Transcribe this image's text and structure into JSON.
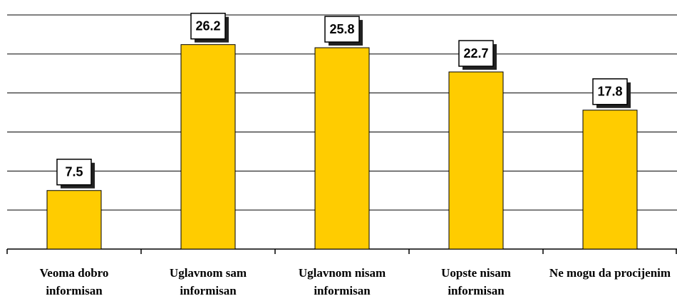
{
  "chart_data": {
    "type": "bar",
    "categories": [
      "Veoma dobro informisan",
      "Uglavnom sam informisan",
      "Uglavnom nisam informisan",
      "Uopste nisam informisan",
      "Ne mogu da procijenim"
    ],
    "values": [
      7.5,
      26.2,
      25.8,
      22.7,
      17.8
    ],
    "color": "#ffcc00",
    "ylim": [
      0,
      30
    ],
    "yticks": [
      0,
      5,
      10,
      15,
      20,
      25,
      30
    ],
    "grid": true
  }
}
